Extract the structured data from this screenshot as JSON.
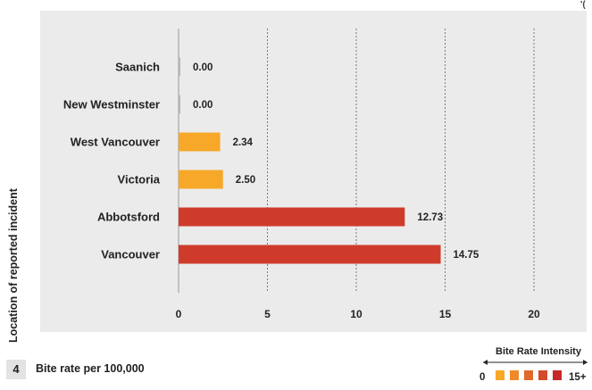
{
  "chart_data": {
    "type": "bar",
    "orientation": "horizontal",
    "categories": [
      "Saanich",
      "New Westminster",
      "West Vancouver",
      "Victoria",
      "Abbotsford",
      "Vancouver"
    ],
    "values": [
      0.0,
      0.0,
      2.34,
      2.5,
      12.73,
      14.75
    ],
    "value_labels": [
      "0.00",
      "0.00",
      "2.34",
      "2.50",
      "12.73",
      "14.75"
    ],
    "xlim": [
      0,
      20
    ],
    "xticks": [
      0,
      5,
      10,
      15,
      20
    ],
    "xlabel_number": "4",
    "xlabel": "Bite rate per 100,000",
    "ylabel": "Location of reported incident",
    "grid": "vertical dotted",
    "legend": {
      "title": "Bite Rate Intensity",
      "placement": "bottom-right",
      "min_label": "0",
      "max_label": "15+",
      "colors": [
        "#f7a828",
        "#f08a28",
        "#e06a2a",
        "#d54a2a",
        "#c8282a"
      ]
    },
    "colors": {
      "low": "#f7a828",
      "high": "#cf3b2b",
      "background": "#ebebeb",
      "zero_bar": "#b8b8b8"
    }
  },
  "corner_mark": "'("
}
